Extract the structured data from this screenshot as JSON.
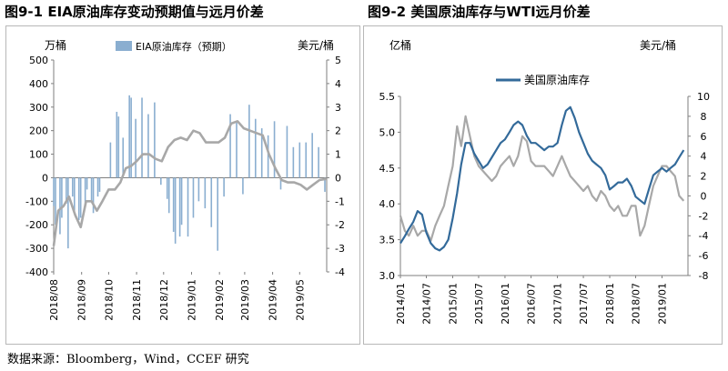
{
  "titles": {
    "fig1": "图9-1 EIA原油库存变动预期值与远月价差",
    "fig2": "图9-2 美国原油库存与WTI远月价差"
  },
  "source": "数据来源：Bloomberg，Wind，CCEF 研究",
  "colors": {
    "bar": "#8aaed0",
    "spread": "#a8a8a8",
    "stock": "#336a9a",
    "axis": "#7f7f7f"
  },
  "chart_data": [
    {
      "type": "bar",
      "left_unit": "万桶",
      "right_unit": "美元/桶",
      "ylim_left": [
        -400,
        500
      ],
      "ylim_right": [
        -4,
        5
      ],
      "yticks_left": [
        "500",
        "400",
        "300",
        "200",
        "100",
        "0",
        "-100",
        "-200",
        "-300",
        "-400"
      ],
      "yticks_right": [
        "5",
        "4",
        "3",
        "2",
        "1",
        "0",
        "-1",
        "-2",
        "-3",
        "-4"
      ],
      "xticks": [
        "2018/08",
        "2018/09",
        "2018/10",
        "2018/11",
        "2018/12",
        "2019/01",
        "2019/02",
        "2019/03",
        "2019/04",
        "2019/05"
      ],
      "x_start": "2018-08-01",
      "x_end": "2019-05-31",
      "legend": "top",
      "series": [
        {
          "name": "EIA原油库存（预期）",
          "kind": "bar",
          "axis": "left",
          "x": [
            "2018-08-01",
            "2018-08-03",
            "2018-08-08",
            "2018-08-10",
            "2018-08-15",
            "2018-08-17",
            "2018-08-22",
            "2018-08-24",
            "2018-08-29",
            "2018-08-31",
            "2018-09-05",
            "2018-09-07",
            "2018-09-12",
            "2018-09-14",
            "2018-09-19",
            "2018-09-21",
            "2018-10-03",
            "2018-10-10",
            "2018-10-12",
            "2018-10-17",
            "2018-10-24",
            "2018-10-26",
            "2018-10-31",
            "2018-11-07",
            "2018-11-14",
            "2018-11-21",
            "2018-11-28",
            "2018-12-05",
            "2018-12-07",
            "2018-12-12",
            "2018-12-14",
            "2018-12-19",
            "2018-12-21",
            "2018-12-28",
            "2019-01-03",
            "2019-01-09",
            "2019-01-16",
            "2019-01-23",
            "2019-01-30",
            "2019-02-06",
            "2019-02-13",
            "2019-02-20",
            "2019-02-27",
            "2019-03-06",
            "2019-03-13",
            "2019-03-20",
            "2019-03-27",
            "2019-04-03",
            "2019-04-10",
            "2019-04-17",
            "2019-04-24",
            "2019-05-01",
            "2019-05-08",
            "2019-05-15",
            "2019-05-22",
            "2019-05-29"
          ],
          "values": [
            -120,
            -200,
            -240,
            -170,
            -110,
            -300,
            -80,
            -140,
            -180,
            -170,
            -120,
            -50,
            -100,
            -150,
            -80,
            -60,
            150,
            280,
            260,
            170,
            350,
            340,
            250,
            340,
            270,
            320,
            -30,
            -90,
            -150,
            -230,
            -280,
            -250,
            -200,
            -250,
            -170,
            -100,
            -130,
            -210,
            -310,
            -80,
            270,
            240,
            -70,
            310,
            250,
            210,
            180,
            240,
            -50,
            220,
            130,
            150,
            150,
            190,
            130,
            -60
          ]
        },
        {
          "name": "",
          "kind": "line",
          "axis": "right",
          "x": [
            "2018-08-01",
            "2018-08-06",
            "2018-08-12",
            "2018-08-18",
            "2018-08-25",
            "2018-08-31",
            "2018-09-06",
            "2018-09-12",
            "2018-09-18",
            "2018-09-24",
            "2018-10-01",
            "2018-10-08",
            "2018-10-14",
            "2018-10-20",
            "2018-10-26",
            "2018-11-01",
            "2018-11-08",
            "2018-11-15",
            "2018-11-22",
            "2018-11-29",
            "2018-12-06",
            "2018-12-13",
            "2018-12-20",
            "2018-12-27",
            "2019-01-03",
            "2019-01-10",
            "2019-01-17",
            "2019-01-24",
            "2019-01-31",
            "2019-02-07",
            "2019-02-14",
            "2019-02-21",
            "2019-02-28",
            "2019-03-07",
            "2019-03-14",
            "2019-03-21",
            "2019-03-28",
            "2019-04-04",
            "2019-04-11",
            "2019-04-18",
            "2019-04-25",
            "2019-05-02",
            "2019-05-09",
            "2019-05-16",
            "2019-05-23",
            "2019-05-31"
          ],
          "values": [
            -2.9,
            -1.4,
            -1.2,
            -0.8,
            -1.6,
            -2.1,
            -1.0,
            -1.0,
            -1.4,
            -1.0,
            -0.5,
            -0.5,
            -0.2,
            0.4,
            0.5,
            0.7,
            1.0,
            1.0,
            0.8,
            0.7,
            1.3,
            1.6,
            1.7,
            1.6,
            2.0,
            1.9,
            1.5,
            1.5,
            1.5,
            1.7,
            2.3,
            2.4,
            2.1,
            2.0,
            1.9,
            1.8,
            1.0,
            0.4,
            -0.1,
            -0.2,
            -0.2,
            -0.3,
            -0.5,
            -0.3,
            -0.1,
            -0.05
          ]
        }
      ]
    },
    {
      "type": "line",
      "left_unit": "亿桶",
      "right_unit": "美元/桶",
      "ylim_left": [
        3.0,
        5.5
      ],
      "ylim_right": [
        -8,
        10
      ],
      "yticks_left": [
        "5.5",
        "5.0",
        "4.5",
        "4.0",
        "3.5",
        "3.0"
      ],
      "yticks_right": [
        "10",
        "8",
        "6",
        "4",
        "2",
        "0",
        "-2",
        "-4",
        "-6",
        "-8"
      ],
      "xticks": [
        "2014/01",
        "2014/07",
        "2015/01",
        "2015/07",
        "2016/01",
        "2016/07",
        "2017/01",
        "2017/07",
        "2018/01",
        "2018/07",
        "2019/01"
      ],
      "x_start": "2014-01-01",
      "x_end": "2019-07-01",
      "legend": "top-left",
      "series": [
        {
          "name": "美国原油库存",
          "axis": "left",
          "x": [
            "2014-01-01",
            "2014-02-01",
            "2014-03-01",
            "2014-04-01",
            "2014-05-01",
            "2014-06-01",
            "2014-07-01",
            "2014-08-01",
            "2014-09-01",
            "2014-10-01",
            "2014-11-01",
            "2014-12-01",
            "2015-01-01",
            "2015-02-01",
            "2015-03-01",
            "2015-04-01",
            "2015-05-01",
            "2015-06-01",
            "2015-07-01",
            "2015-08-01",
            "2015-09-01",
            "2015-10-01",
            "2015-11-01",
            "2015-12-01",
            "2016-01-01",
            "2016-02-01",
            "2016-03-01",
            "2016-04-01",
            "2016-05-01",
            "2016-06-01",
            "2016-07-01",
            "2016-08-01",
            "2016-09-01",
            "2016-10-01",
            "2016-11-01",
            "2016-12-01",
            "2017-01-01",
            "2017-02-01",
            "2017-03-01",
            "2017-04-01",
            "2017-05-01",
            "2017-06-01",
            "2017-07-01",
            "2017-08-01",
            "2017-09-01",
            "2017-10-01",
            "2017-11-01",
            "2017-12-01",
            "2018-01-01",
            "2018-02-01",
            "2018-03-01",
            "2018-04-01",
            "2018-05-01",
            "2018-06-01",
            "2018-07-01",
            "2018-08-01",
            "2018-09-01",
            "2018-10-01",
            "2018-11-01",
            "2018-12-01",
            "2019-01-01",
            "2019-02-01",
            "2019-03-01",
            "2019-04-01",
            "2019-05-01",
            "2019-06-01"
          ],
          "values": [
            3.45,
            3.55,
            3.65,
            3.75,
            3.9,
            3.85,
            3.6,
            3.45,
            3.38,
            3.35,
            3.4,
            3.5,
            3.8,
            4.15,
            4.55,
            4.85,
            4.85,
            4.7,
            4.6,
            4.5,
            4.55,
            4.65,
            4.75,
            4.85,
            4.9,
            5.0,
            5.1,
            5.15,
            5.1,
            4.95,
            4.85,
            4.85,
            4.8,
            4.75,
            4.8,
            4.8,
            4.85,
            5.1,
            5.3,
            5.35,
            5.2,
            5.0,
            4.85,
            4.7,
            4.6,
            4.55,
            4.5,
            4.4,
            4.2,
            4.25,
            4.3,
            4.3,
            4.35,
            4.25,
            4.1,
            4.05,
            4.0,
            4.2,
            4.4,
            4.45,
            4.5,
            4.45,
            4.5,
            4.55,
            4.65,
            4.75
          ]
        },
        {
          "name": "",
          "axis": "right",
          "x": [
            "2014-01-01",
            "2014-02-01",
            "2014-03-01",
            "2014-04-01",
            "2014-05-01",
            "2014-06-01",
            "2014-07-01",
            "2014-08-01",
            "2014-09-01",
            "2014-10-01",
            "2014-11-01",
            "2014-12-01",
            "2015-01-01",
            "2015-02-01",
            "2015-03-01",
            "2015-04-01",
            "2015-05-01",
            "2015-06-01",
            "2015-07-01",
            "2015-08-01",
            "2015-09-01",
            "2015-10-01",
            "2015-11-01",
            "2015-12-01",
            "2016-01-01",
            "2016-02-01",
            "2016-03-01",
            "2016-04-01",
            "2016-05-01",
            "2016-06-01",
            "2016-07-01",
            "2016-08-01",
            "2016-09-01",
            "2016-10-01",
            "2016-11-01",
            "2016-12-01",
            "2017-01-01",
            "2017-02-01",
            "2017-03-01",
            "2017-04-01",
            "2017-05-01",
            "2017-06-01",
            "2017-07-01",
            "2017-08-01",
            "2017-09-01",
            "2017-10-01",
            "2017-11-01",
            "2017-12-01",
            "2018-01-01",
            "2018-02-01",
            "2018-03-01",
            "2018-04-01",
            "2018-05-01",
            "2018-06-01",
            "2018-07-01",
            "2018-08-01",
            "2018-09-01",
            "2018-10-01",
            "2018-11-01",
            "2018-12-01",
            "2019-01-01",
            "2019-02-01",
            "2019-03-01",
            "2019-04-01",
            "2019-05-01",
            "2019-06-01"
          ],
          "values": [
            -2,
            -3.5,
            -4,
            -3,
            -4,
            -3.5,
            -3.5,
            -4.5,
            -3,
            -2,
            -1,
            1,
            3,
            7,
            5,
            8,
            6,
            4,
            3,
            2.5,
            2,
            1.5,
            2,
            3,
            3.5,
            4,
            3,
            4,
            6,
            5.5,
            3.5,
            3,
            3,
            3,
            2.5,
            2,
            3,
            4,
            3,
            2,
            1.5,
            1,
            0.5,
            1,
            0,
            -0.5,
            0.5,
            0,
            -1,
            -1.5,
            -1,
            -2,
            -2,
            -1,
            -1,
            -4,
            -3,
            -1,
            1,
            2,
            3,
            3,
            2.5,
            2,
            0,
            -0.5
          ]
        }
      ]
    }
  ]
}
